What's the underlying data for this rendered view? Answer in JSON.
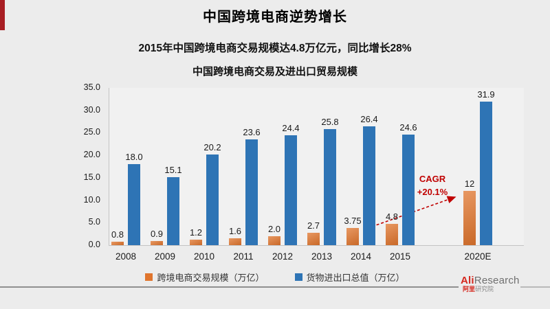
{
  "page": {
    "title": "中国跨境电商逆势增长",
    "subtitle": "2015年中国跨境电商交易规模达4.8万亿元，同比增长28%"
  },
  "chart_data": {
    "type": "bar",
    "title": "中国跨境电商交易及进出口贸易规模",
    "categories": [
      "2008",
      "2009",
      "2010",
      "2011",
      "2012",
      "2013",
      "2014",
      "2015",
      "2020E"
    ],
    "series": [
      {
        "name": "跨境电商交易规模（万亿）",
        "color": "#E0752D",
        "values": [
          0.8,
          0.9,
          1.2,
          1.6,
          2.0,
          2.7,
          3.75,
          4.8,
          12
        ],
        "labels": [
          "0.8",
          "0.9",
          "1.2",
          "1.6",
          "2.0",
          "2.7",
          "3.75",
          "4.8",
          "12"
        ]
      },
      {
        "name": "货物进出口总值（万亿）",
        "color": "#2E74B5",
        "values": [
          18.0,
          15.1,
          20.2,
          23.6,
          24.4,
          25.8,
          26.4,
          24.6,
          31.9
        ],
        "labels": [
          "18.0",
          "15.1",
          "20.2",
          "23.6",
          "24.4",
          "25.8",
          "26.4",
          "24.6",
          "31.9"
        ]
      }
    ],
    "ylim": [
      0,
      35
    ],
    "ytick_step": 5,
    "ytick_labels": [
      "0.0",
      "5.0",
      "10.0",
      "15.0",
      "20.0",
      "25.0",
      "30.0",
      "35.0"
    ],
    "grid": false,
    "legend_position": "bottom",
    "annotation": {
      "line1": "CAGR",
      "line2": "+20.1%",
      "color": "#C00000",
      "arrow": "dashed red arrow from 2015 e-commerce bar to 2020E e-commerce bar"
    }
  },
  "footer": {
    "logo": {
      "brand_primary": "Ali",
      "brand_secondary": "Research",
      "sub_primary": "阿里",
      "sub_secondary": "研究院"
    }
  },
  "colors": {
    "background": "#ECECEC",
    "accent_red": "#A81E23",
    "annotation_red": "#C00000",
    "series_orange": "#E0752D",
    "series_blue": "#2E74B5"
  }
}
